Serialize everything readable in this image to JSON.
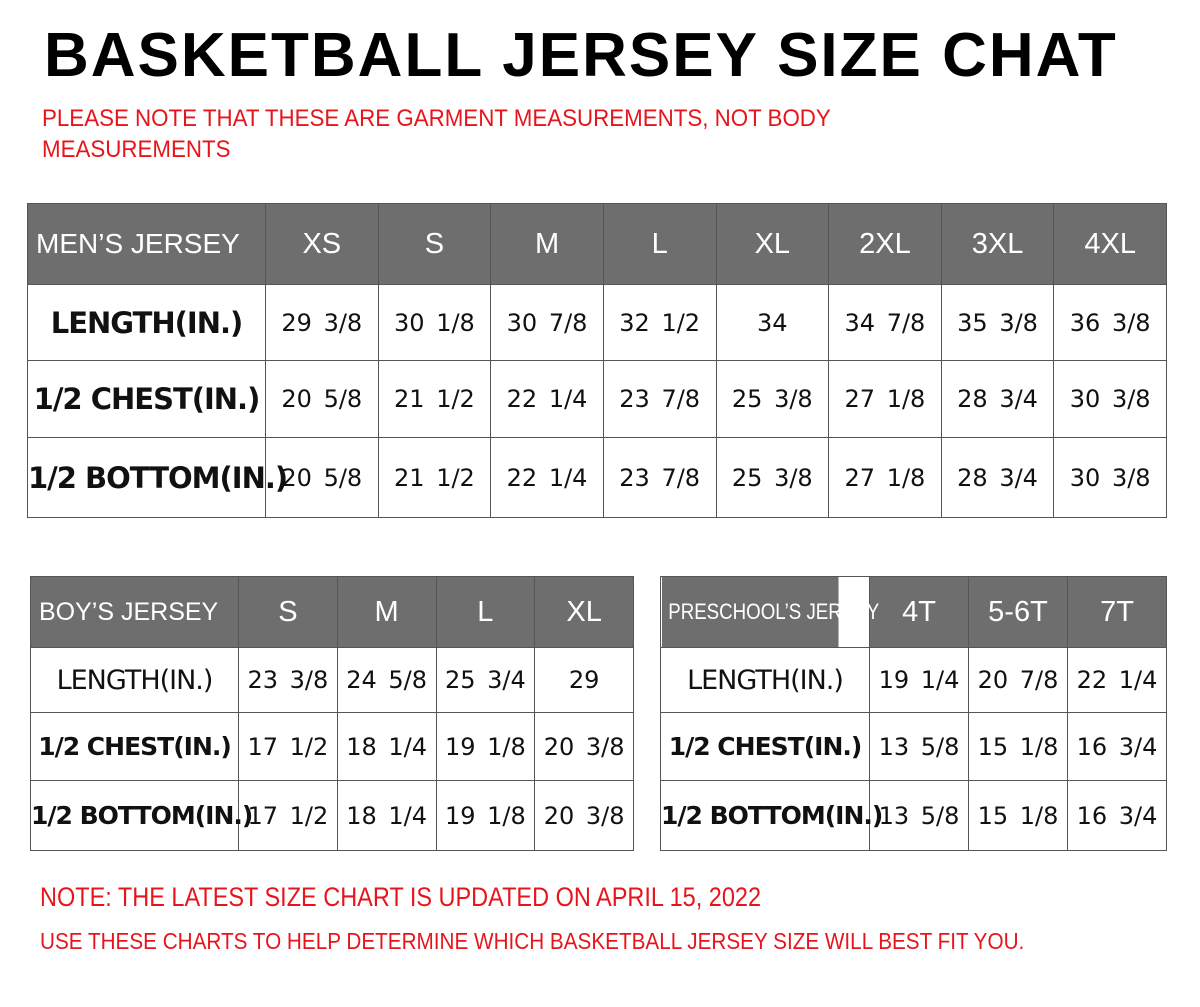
{
  "title": "BASKETBALL JERSEY SIZE CHAT",
  "note_top": "PLEASE NOTE THAT THESE ARE GARMENT MEASUREMENTS, NOT BODY MEASUREMENTS",
  "colors": {
    "header_bg": "#6e6e6e",
    "note_red": "#e8141b"
  },
  "tables": {
    "men": {
      "header": "MEN’S JERSEY",
      "sizes": [
        "XS",
        "S",
        "M",
        "L",
        "XL",
        "2XL",
        "3XL",
        "4XL"
      ],
      "rows": [
        {
          "label": "LENGTH(IN.)",
          "values": [
            "29 3/8",
            "30 1/8",
            "30 7/8",
            "32 1/2",
            "34",
            "34 7/8",
            "35 3/8",
            "36 3/8"
          ]
        },
        {
          "label": "1/2 CHEST(IN.)",
          "values": [
            "20 5/8",
            "21 1/2",
            "22 1/4",
            "23 7/8",
            "25 3/8",
            "27 1/8",
            "28 3/4",
            "30 3/8"
          ]
        },
        {
          "label": "1/2 BOTTOM(IN.)",
          "values": [
            "20 5/8",
            "21 1/2",
            "22 1/4",
            "23 7/8",
            "25 3/8",
            "27 1/8",
            "28 3/4",
            "30 3/8"
          ]
        }
      ]
    },
    "boy": {
      "header": "BOY’S JERSEY",
      "sizes": [
        "S",
        "M",
        "L",
        "XL"
      ],
      "rows": [
        {
          "label": "LENGTH(IN.)",
          "values": [
            "23 3/8",
            "24 5/8",
            "25 3/4",
            "29"
          ]
        },
        {
          "label": "1/2 CHEST(IN.)",
          "values": [
            "17 1/2",
            "18 1/4",
            "19 1/8",
            "20 3/8"
          ]
        },
        {
          "label": "1/2 BOTTOM(IN.)",
          "values": [
            "17 1/2",
            "18 1/4",
            "19 1/8",
            "20 3/8"
          ]
        }
      ]
    },
    "pre": {
      "header": "PRESCHOOL’S JERSEY",
      "sizes": [
        "4T",
        "5-6T",
        "7T"
      ],
      "rows": [
        {
          "label": "LENGTH(IN.)",
          "values": [
            "19 1/4",
            "20 7/8",
            "22 1/4"
          ]
        },
        {
          "label": "1/2 CHEST(IN.)",
          "values": [
            "13 5/8",
            "15 1/8",
            "16 3/4"
          ]
        },
        {
          "label": "1/2 BOTTOM(IN.)",
          "values": [
            "13 5/8",
            "15 1/8",
            "16 3/4"
          ]
        }
      ]
    }
  },
  "note_bottom_1": "NOTE: THE LATEST SIZE CHART IS UPDATED ON APRIL 15, 2022",
  "note_bottom_2": "USE THESE CHARTS TO HELP DETERMINE WHICH  BASKETBALL JERSEY  SIZE WILL BEST FIT YOU."
}
